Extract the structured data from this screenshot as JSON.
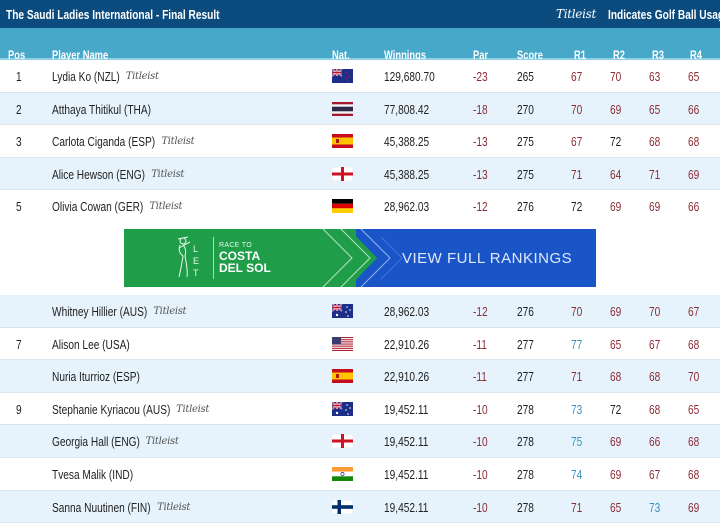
{
  "header": {
    "title": "The Saudi Ladies International - Final Result",
    "legend_logo": "Titleist",
    "legend_text": "Indicates Golf Ball Usage"
  },
  "columns": {
    "pos": "Pos",
    "player": "Player Name",
    "nat": "Nat.",
    "winnings": "Winnings",
    "par": "Par",
    "score": "Score",
    "r1": "R1",
    "r2": "R2",
    "r3": "R3",
    "r4": "R4"
  },
  "colors": {
    "header_bg": "#0b4b7d",
    "column_header_bg": "#47a8c9",
    "alt_row_bg": "#e6f3fc",
    "under_par": "#8b2c35",
    "over_par": "#3a93bd",
    "level_par": "#222222",
    "banner_green": "#1f9d49",
    "banner_blue": "#1a55c8"
  },
  "rows": [
    {
      "pos": "1",
      "name": "Lydia Ko (NZL)",
      "titleist": true,
      "flag": "NZL",
      "winnings": "129,680.70",
      "par": "-23",
      "score": "265",
      "r1": "67",
      "r2": "70",
      "r3": "63",
      "r4": "65"
    },
    {
      "pos": "2",
      "name": "Atthaya Thitikul (THA)",
      "titleist": false,
      "flag": "THA",
      "winnings": "77,808.42",
      "par": "-18",
      "score": "270",
      "r1": "70",
      "r2": "69",
      "r3": "65",
      "r4": "66"
    },
    {
      "pos": "3",
      "name": "Carlota Ciganda (ESP)",
      "titleist": true,
      "flag": "ESP",
      "winnings": "45,388.25",
      "par": "-13",
      "score": "275",
      "r1": "67",
      "r2": "72",
      "r3": "68",
      "r4": "68"
    },
    {
      "pos": "",
      "name": "Alice Hewson (ENG)",
      "titleist": true,
      "flag": "ENG",
      "winnings": "45,388.25",
      "par": "-13",
      "score": "275",
      "r1": "71",
      "r2": "64",
      "r3": "71",
      "r4": "69"
    },
    {
      "pos": "5",
      "name": "Olivia Cowan (GER)",
      "titleist": true,
      "flag": "GER",
      "winnings": "28,962.03",
      "par": "-12",
      "score": "276",
      "r1": "72",
      "r2": "69",
      "r3": "69",
      "r4": "66"
    },
    {
      "pos": "",
      "name": "Whitney Hillier (AUS)",
      "titleist": true,
      "flag": "AUS",
      "winnings": "28,962.03",
      "par": "-12",
      "score": "276",
      "r1": "70",
      "r2": "69",
      "r3": "70",
      "r4": "67"
    },
    {
      "pos": "7",
      "name": "Alison Lee (USA)",
      "titleist": false,
      "flag": "USA",
      "winnings": "22,910.26",
      "par": "-11",
      "score": "277",
      "r1": "77",
      "r2": "65",
      "r3": "67",
      "r4": "68"
    },
    {
      "pos": "",
      "name": "Nuria Iturrioz (ESP)",
      "titleist": false,
      "flag": "ESP",
      "winnings": "22,910.26",
      "par": "-11",
      "score": "277",
      "r1": "71",
      "r2": "68",
      "r3": "68",
      "r4": "70"
    },
    {
      "pos": "9",
      "name": "Stephanie Kyriacou (AUS)",
      "titleist": true,
      "flag": "AUS",
      "winnings": "19,452.11",
      "par": "-10",
      "score": "278",
      "r1": "73",
      "r2": "72",
      "r3": "68",
      "r4": "65"
    },
    {
      "pos": "",
      "name": "Georgia Hall (ENG)",
      "titleist": true,
      "flag": "ENG",
      "winnings": "19,452.11",
      "par": "-10",
      "score": "278",
      "r1": "75",
      "r2": "69",
      "r3": "66",
      "r4": "68"
    },
    {
      "pos": "",
      "name": "Tvesa Malik (IND)",
      "titleist": false,
      "flag": "IND",
      "winnings": "19,452.11",
      "par": "-10",
      "score": "278",
      "r1": "74",
      "r2": "69",
      "r3": "67",
      "r4": "68"
    },
    {
      "pos": "",
      "name": "Sanna Nuutinen (FIN)",
      "titleist": true,
      "flag": "FIN",
      "winnings": "19,452.11",
      "par": "-10",
      "score": "278",
      "r1": "71",
      "r2": "65",
      "r3": "73",
      "r4": "69"
    }
  ],
  "banner": {
    "race_to": "RACE TO",
    "line1": "COSTA",
    "line2": "DEL SOL",
    "cta": "VIEW FULL RANKINGS",
    "logo_letters": "LET"
  }
}
